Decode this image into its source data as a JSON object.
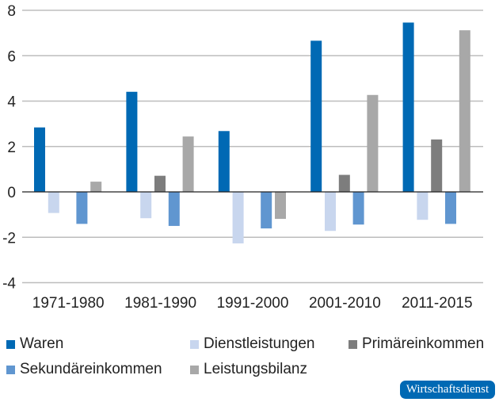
{
  "chart_data": {
    "type": "bar",
    "title": "",
    "xlabel": "",
    "ylabel": "",
    "ylim": [
      -4,
      8
    ],
    "yticks": [
      -4,
      -2,
      0,
      2,
      4,
      6,
      8
    ],
    "ytick_labels": [
      "-4",
      "-2",
      "0",
      "2",
      "4",
      "6",
      "8"
    ],
    "grid": true,
    "legend_position": "bottom",
    "categories": [
      "1971-1980",
      "1981-1990",
      "1991-2000",
      "2001-2010",
      "2011-2015"
    ],
    "series": [
      {
        "name": "Waren",
        "color": "#0069b4",
        "values": [
          2.84,
          4.41,
          2.68,
          6.66,
          7.46
        ]
      },
      {
        "name": "Dienstleistungen",
        "color": "#c8d6ee",
        "values": [
          -0.93,
          -1.16,
          -2.27,
          -1.72,
          -1.23
        ]
      },
      {
        "name": "Primäreinkommen",
        "color": "#7d7d7d",
        "values": [
          0.0,
          0.71,
          0.0,
          0.75,
          2.31
        ]
      },
      {
        "name": "Sekundäreinkommen",
        "color": "#6096d0",
        "values": [
          -1.41,
          -1.5,
          -1.61,
          -1.44,
          -1.41
        ]
      },
      {
        "name": "Leistungsbilanz",
        "color": "#a8a8a8",
        "values": [
          0.45,
          2.44,
          -1.19,
          4.27,
          7.12
        ]
      }
    ]
  },
  "logo": {
    "text": "Wirtschaftsdienst",
    "color": "#0069b4"
  }
}
